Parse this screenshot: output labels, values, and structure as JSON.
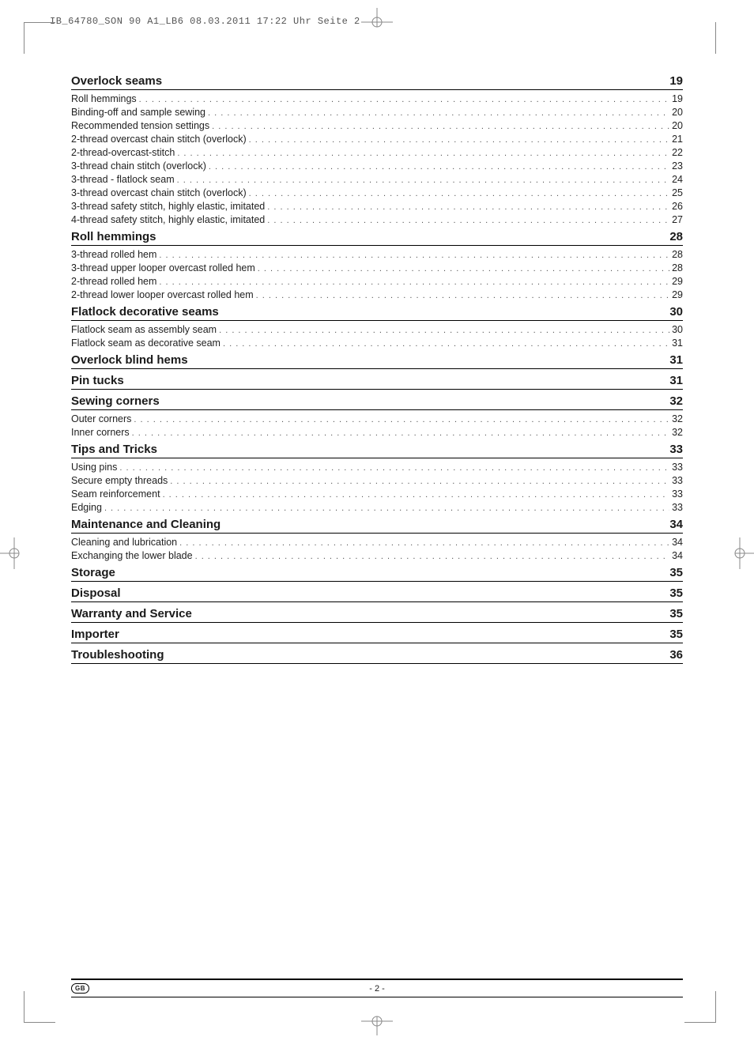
{
  "header": "IB_64780_SON 90 A1_LB6  08.03.2011  17:22 Uhr  Seite 2",
  "footer": {
    "badge": "GB",
    "page": "- 2 -"
  },
  "toc": [
    {
      "title": "Overlock seams",
      "page": "19",
      "entries": [
        {
          "label": "Roll hemmings",
          "page": "19"
        },
        {
          "label": "Binding-off and sample sewing",
          "page": "20"
        },
        {
          "label": "Recommended tension settings",
          "page": "20"
        },
        {
          "label": "2-thread overcast chain stitch (overlock)",
          "page": "21"
        },
        {
          "label": "2-thread-overcast-stitch",
          "page": "22"
        },
        {
          "label": "3-thread chain stitch (overlock)",
          "page": "23"
        },
        {
          "label": "3-thread - flatlock seam",
          "page": "24"
        },
        {
          "label": "3-thread overcast chain stitch (overlock)",
          "page": "25"
        },
        {
          "label": "3-thread safety stitch, highly elastic, imitated",
          "page": "26"
        },
        {
          "label": "4-thread safety stitch, highly elastic, imitated",
          "page": "27"
        }
      ]
    },
    {
      "title": "Roll hemmings",
      "page": "28",
      "entries": [
        {
          "label": "3-thread rolled hem",
          "page": "28"
        },
        {
          "label": "3-thread upper looper overcast rolled hem",
          "page": "28"
        },
        {
          "label": "2-thread rolled hem",
          "page": "29"
        },
        {
          "label": "2-thread lower looper overcast rolled hem",
          "page": "29"
        }
      ]
    },
    {
      "title": "Flatlock decorative seams",
      "page": "30",
      "entries": [
        {
          "label": "Flatlock seam as assembly seam",
          "page": "30"
        },
        {
          "label": "Flatlock seam as decorative seam",
          "page": "31"
        }
      ]
    },
    {
      "title": "Overlock blind hems",
      "page": "31",
      "entries": []
    },
    {
      "title": "Pin tucks",
      "page": "31",
      "entries": []
    },
    {
      "title": "Sewing corners",
      "page": "32",
      "entries": [
        {
          "label": "Outer corners",
          "page": "32"
        },
        {
          "label": "Inner corners",
          "page": "32"
        }
      ]
    },
    {
      "title": "Tips and Tricks",
      "page": "33",
      "entries": [
        {
          "label": "Using pins",
          "page": "33"
        },
        {
          "label": "Secure empty threads",
          "page": "33"
        },
        {
          "label": "Seam reinforcement",
          "page": "33"
        },
        {
          "label": "Edging",
          "page": "33"
        }
      ]
    },
    {
      "title": "Maintenance and Cleaning",
      "page": "34",
      "entries": [
        {
          "label": "Cleaning and lubrication",
          "page": "34"
        },
        {
          "label": "Exchanging the lower blade",
          "page": "34"
        }
      ]
    },
    {
      "title": "Storage",
      "page": "35",
      "entries": []
    },
    {
      "title": "Disposal",
      "page": "35",
      "entries": []
    },
    {
      "title": "Warranty and Service",
      "page": "35",
      "entries": []
    },
    {
      "title": "Importer",
      "page": "35",
      "entries": []
    },
    {
      "title": "Troubleshooting",
      "page": "36",
      "entries": []
    }
  ]
}
